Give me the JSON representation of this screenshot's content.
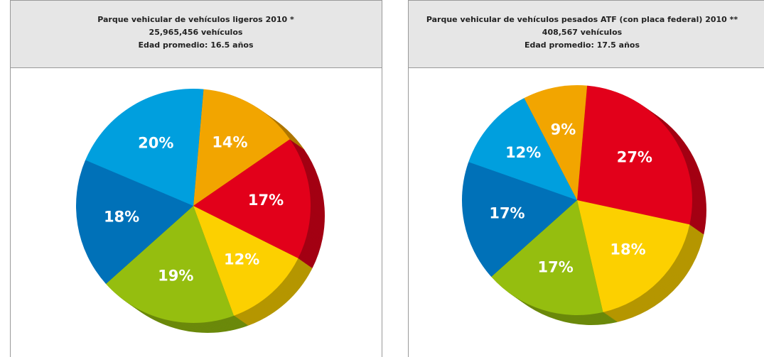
{
  "chart_data": [
    {
      "type": "pie",
      "title_lines": [
        "Parque vehicular de vehículos ligeros 2010 *",
        "25,965,456 vehículos",
        "Edad promedio: 16.5 años"
      ],
      "values": [
        14,
        17,
        12,
        19,
        18,
        20
      ],
      "value_labels": [
        "14%",
        "17%",
        "12%",
        "19%",
        "18%",
        "20%"
      ],
      "colors": [
        "#f2a500",
        "#e2001a",
        "#fcd000",
        "#95be0f",
        "#0071b8",
        "#009fde"
      ]
    },
    {
      "type": "pie",
      "title_lines": [
        "Parque vehicular de vehículos pesados ATF (con placa federal) 2010 **",
        "408,567 vehículos",
        "Edad promedio: 17.5 años"
      ],
      "values": [
        27,
        18,
        17,
        17,
        12,
        9
      ],
      "value_labels": [
        "27%",
        "18%",
        "17%",
        "17%",
        "12%",
        "9%"
      ],
      "colors": [
        "#e2001a",
        "#fcd000",
        "#95be0f",
        "#0071b8",
        "#009fde",
        "#f2a500"
      ]
    }
  ]
}
